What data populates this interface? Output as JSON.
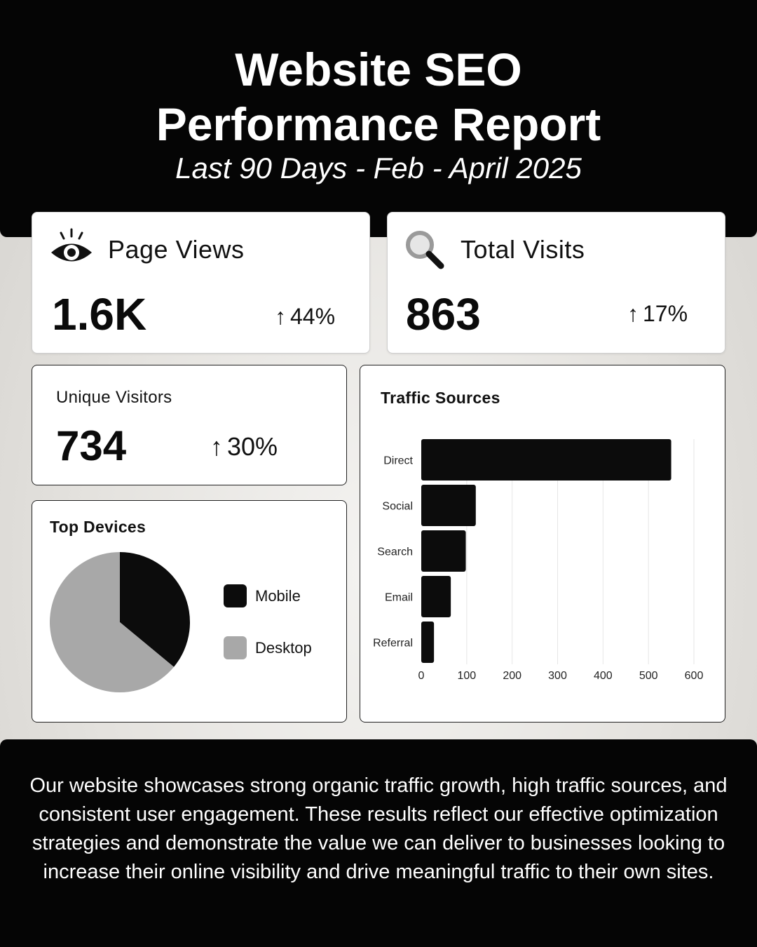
{
  "header": {
    "title_line1": "Website SEO",
    "title_line2": "Performance Report",
    "subtitle": "Last 90 Days - Feb - April 2025"
  },
  "kpis": {
    "page_views": {
      "label": "Page Views",
      "value": "1.6K",
      "change": "44%",
      "icon": "eye-icon"
    },
    "total_visits": {
      "label": "Total Visits",
      "value": "863",
      "change": "17%",
      "icon": "search-icon"
    },
    "unique_visitors": {
      "label": "Unique Visitors",
      "value": "734",
      "change": "30%"
    }
  },
  "arrow_glyph": "↑",
  "top_devices": {
    "title": "Top Devices"
  },
  "traffic_sources": {
    "title": "Traffic Sources"
  },
  "footer": {
    "text": "Our website showcases strong organic traffic growth, high traffic sources, and consistent user engagement. These results reflect our effective optimization strategies and demonstrate the value we can deliver to businesses looking to increase their online visibility and drive meaningful traffic to their own sites."
  },
  "colors": {
    "background_dark": "#050505",
    "bar": "#0c0c0c",
    "mobile": "#0c0c0c",
    "desktop": "#a8a8a8"
  },
  "chart_data": [
    {
      "type": "pie",
      "title": "Top Devices",
      "categories": [
        "Mobile",
        "Desktop"
      ],
      "values": [
        36,
        64
      ],
      "colors": [
        "#0c0c0c",
        "#a8a8a8"
      ],
      "legend": "right"
    },
    {
      "type": "bar",
      "orientation": "horizontal",
      "title": "Traffic Sources",
      "categories": [
        "Direct",
        "Social",
        "Search",
        "Email",
        "Referral"
      ],
      "values": [
        550,
        120,
        98,
        65,
        28
      ],
      "xlim": [
        0,
        600
      ],
      "xticks": [
        0,
        100,
        200,
        300,
        400,
        500,
        600
      ],
      "grid": true,
      "color": "#0c0c0c"
    }
  ]
}
